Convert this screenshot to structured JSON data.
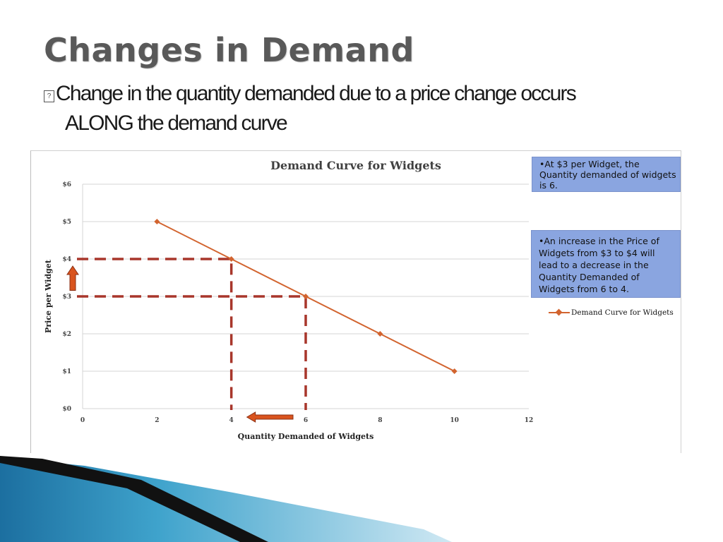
{
  "slide": {
    "title": "Changes in Demand",
    "bullet_line1": "Change in the quantity demanded due to a price change occurs",
    "bullet_line2": "ALONG the demand curve"
  },
  "callouts": {
    "first": "•At $3 per Widget, the Quantity demanded of widgets is 6.",
    "second": "•An increase in the Price of Widgets from $3 to $4 will lead to a decrease in the Quantity Demanded of Widgets from 6 to 4."
  },
  "colors": {
    "line": "#d2642f",
    "dashed": "#a8362b",
    "arrow": "#d9541e",
    "callout_bg": "#8aa5e0"
  },
  "chart_data": {
    "type": "line",
    "title": "Demand Curve for Widgets",
    "xlabel": "Quantity Demanded of Widgets",
    "ylabel": "Price per Widget",
    "xlim": [
      0,
      12
    ],
    "ylim": [
      0,
      6
    ],
    "x_ticks": [
      "0",
      "2",
      "4",
      "6",
      "8",
      "10",
      "12"
    ],
    "y_ticks": [
      "$0",
      "$1",
      "$2",
      "$3",
      "$4",
      "$5",
      "$6"
    ],
    "grid": true,
    "legend_position": "right",
    "series": [
      {
        "name": "Demand Curve for Widgets",
        "x": [
          2,
          4,
          6,
          8,
          10
        ],
        "y": [
          5,
          4,
          3,
          2,
          1
        ]
      }
    ],
    "annotations": {
      "dashed_guides": [
        {
          "x": 4,
          "y": 4
        },
        {
          "x": 6,
          "y": 3
        }
      ],
      "arrows": [
        {
          "type": "price-up",
          "from_y": 3,
          "to_y": 4
        },
        {
          "type": "quantity-left",
          "from_x": 6,
          "to_x": 4
        }
      ]
    }
  }
}
